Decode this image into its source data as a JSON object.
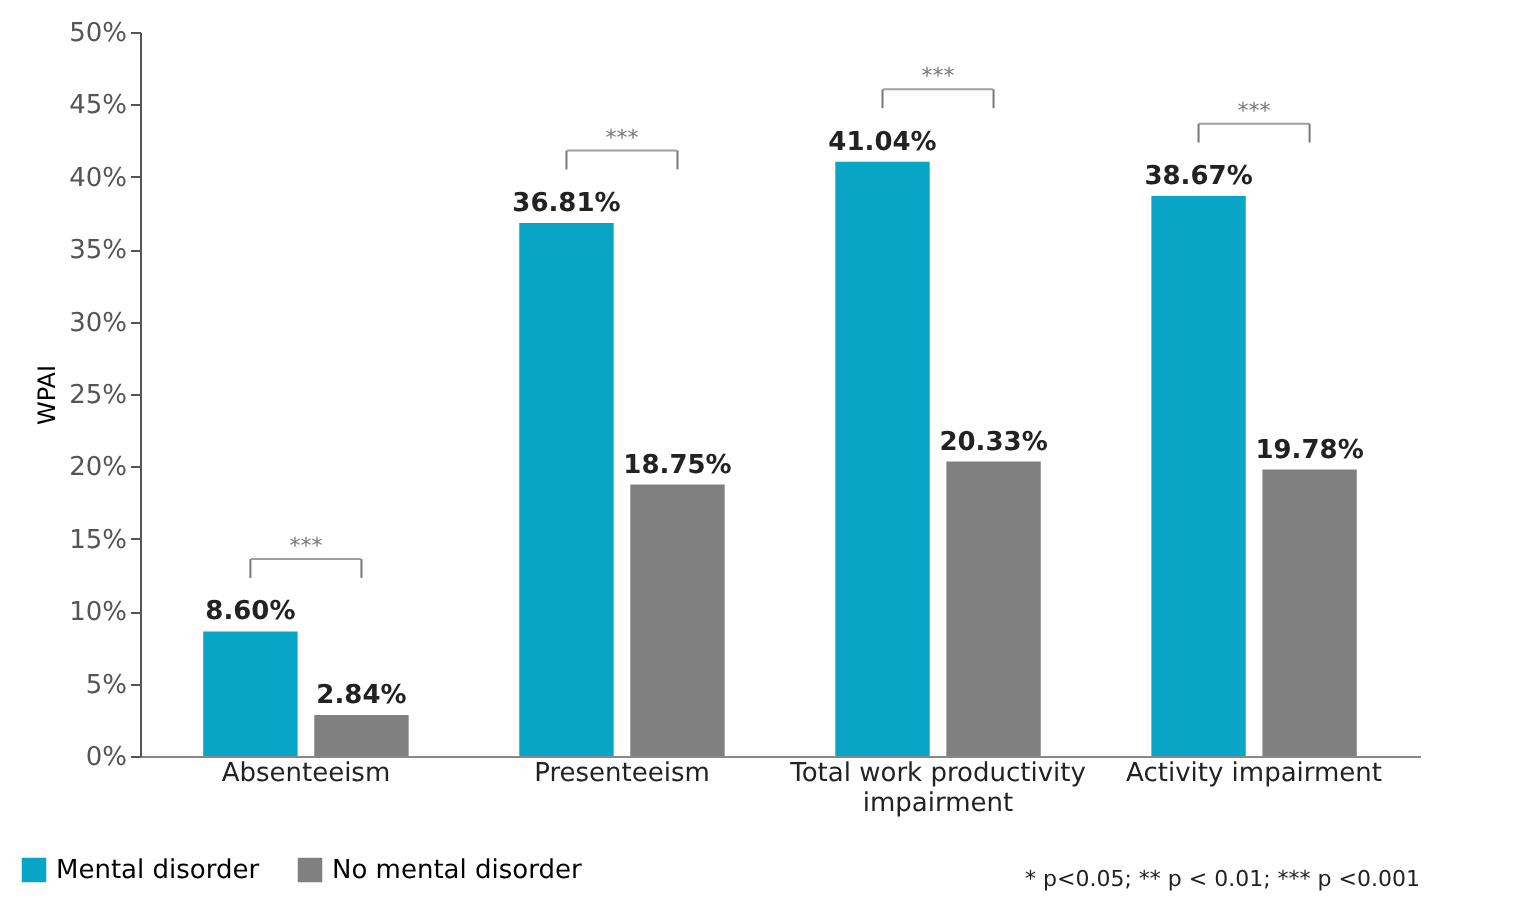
{
  "chart_data": {
    "type": "bar",
    "categories": [
      "Absenteeism",
      "Presenteeism",
      "Total work productivity impairment",
      "Activity impairment"
    ],
    "series": [
      {
        "name": "Mental disorder",
        "color": "#08a5c6",
        "values": [
          8.6,
          36.81,
          41.04,
          38.67
        ],
        "value_labels": [
          "8.60%",
          "36.81%",
          "41.04%",
          "38.67%"
        ]
      },
      {
        "name": "No mental disorder",
        "color": "#808080",
        "values": [
          2.84,
          18.75,
          20.33,
          19.78
        ],
        "value_labels": [
          "2.84%",
          "18.75%",
          "20.33%",
          "19.78%"
        ]
      }
    ],
    "ylabel": "WPAI",
    "ylim": [
      0,
      50
    ],
    "yticks": [
      {
        "value": 0,
        "label": "0%"
      },
      {
        "value": 5,
        "label": "5%"
      },
      {
        "value": 10,
        "label": "10%"
      },
      {
        "value": 15,
        "label": "15%"
      },
      {
        "value": 20,
        "label": "20%"
      },
      {
        "value": 25,
        "label": "25%"
      },
      {
        "value": 30,
        "label": "30%"
      },
      {
        "value": 35,
        "label": "35%"
      },
      {
        "value": 40,
        "label": "40%"
      },
      {
        "value": 45,
        "label": "45%"
      },
      {
        "value": 50,
        "label": "50%"
      }
    ],
    "annotations": [
      "***",
      "***",
      "***",
      "***",
      "* p<0.05; ** p < 0.01; *** p <0.001"
    ],
    "grid": false,
    "legend": "bottom left"
  }
}
